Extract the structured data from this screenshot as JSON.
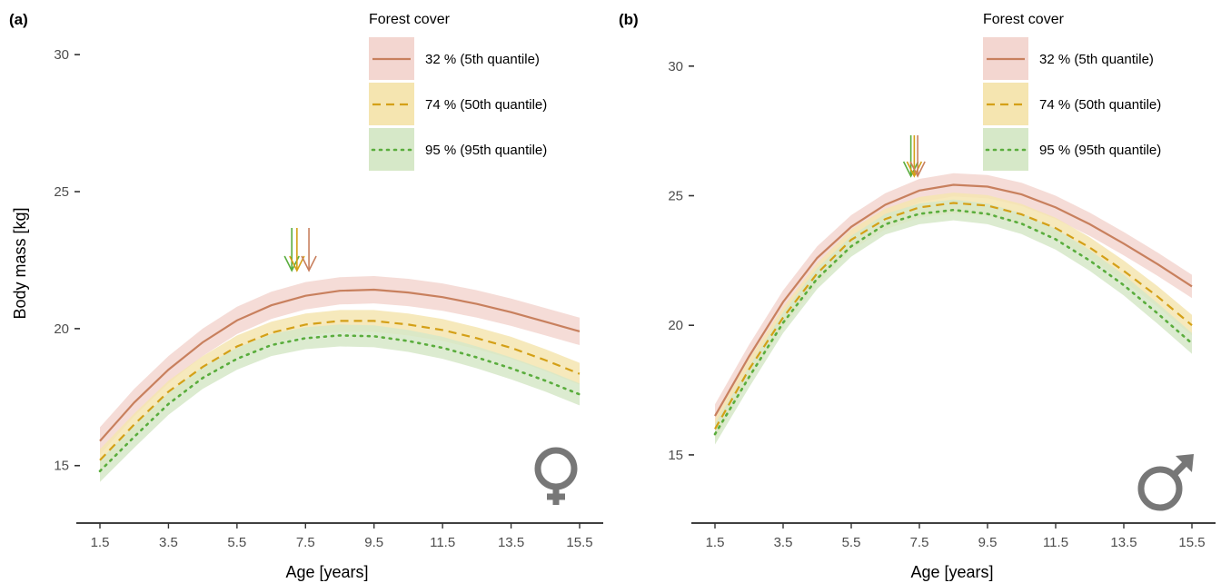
{
  "chart_data": [
    {
      "type": "line",
      "panel_label": "(a)",
      "sex_symbol": "female",
      "xlabel": "Age [years]",
      "ylabel": "Body mass [kg]",
      "xlim": [
        1.5,
        15.5
      ],
      "ylim": [
        13.5,
        31
      ],
      "x_ticks": [
        "1.5",
        "3.5",
        "5.5",
        "7.5",
        "9.5",
        "11.5",
        "13.5",
        "15.5"
      ],
      "y_ticks": [
        "15",
        "20",
        "25",
        "30"
      ],
      "legend_title": "Forest cover",
      "legend_position": "top-right",
      "grid": false,
      "x": [
        1.5,
        2.5,
        3.5,
        4.5,
        5.5,
        6.5,
        7.5,
        8.5,
        9.5,
        10.5,
        11.5,
        12.5,
        13.5,
        14.5,
        15.5
      ],
      "series": [
        {
          "name": "32 % (5th quantile)",
          "color": "#c8805e",
          "band_color": "#f3d6d0",
          "dash": "solid",
          "values": [
            15.9,
            17.3,
            18.5,
            19.5,
            20.3,
            20.85,
            21.2,
            21.38,
            21.42,
            21.32,
            21.15,
            20.9,
            20.6,
            20.25,
            19.9
          ],
          "band_halfwidth": 0.5
        },
        {
          "name": "74 % (50th quantile)",
          "color": "#d4a017",
          "band_color": "#f5e5b0",
          "dash": "dashed",
          "values": [
            15.2,
            16.5,
            17.7,
            18.6,
            19.35,
            19.85,
            20.15,
            20.28,
            20.28,
            20.15,
            19.95,
            19.65,
            19.3,
            18.85,
            18.35
          ],
          "band_halfwidth": 0.4
        },
        {
          "name": "95 % (95th quantile)",
          "color": "#5aad3d",
          "band_color": "#d6e8c8",
          "dash": "dotted",
          "values": [
            14.8,
            16.05,
            17.25,
            18.2,
            18.9,
            19.4,
            19.65,
            19.75,
            19.72,
            19.55,
            19.3,
            18.95,
            18.55,
            18.1,
            17.6
          ],
          "band_halfwidth": 0.4
        }
      ],
      "arrows": [
        {
          "series": "95 % (95th quantile)",
          "x": 7.1
        },
        {
          "series": "74 % (50th quantile)",
          "x": 7.25
        },
        {
          "series": "32 % (5th quantile)",
          "x": 7.6
        }
      ]
    },
    {
      "type": "line",
      "panel_label": "(b)",
      "sex_symbol": "male",
      "xlabel": "Age [years]",
      "ylabel": "",
      "xlim": [
        1.5,
        15.5
      ],
      "ylim": [
        13.0,
        31.5
      ],
      "x_ticks": [
        "1.5",
        "3.5",
        "5.5",
        "7.5",
        "9.5",
        "11.5",
        "13.5",
        "15.5"
      ],
      "y_ticks": [
        "15",
        "20",
        "25",
        "30"
      ],
      "legend_title": "Forest cover",
      "legend_position": "top-right",
      "grid": false,
      "x": [
        1.5,
        2.5,
        3.5,
        4.5,
        5.5,
        6.5,
        7.5,
        8.5,
        9.5,
        10.5,
        11.5,
        12.5,
        13.5,
        14.5,
        15.5
      ],
      "series": [
        {
          "name": "32 % (5th quantile)",
          "color": "#c8805e",
          "band_color": "#f3d6d0",
          "dash": "solid",
          "values": [
            16.5,
            18.8,
            20.9,
            22.6,
            23.8,
            24.65,
            25.2,
            25.42,
            25.35,
            25.05,
            24.55,
            23.9,
            23.15,
            22.35,
            21.5
          ],
          "band_halfwidth": 0.45
        },
        {
          "name": "74 % (50th quantile)",
          "color": "#d4a017",
          "band_color": "#f5e5b0",
          "dash": "dashed",
          "values": [
            16.0,
            18.3,
            20.3,
            22.0,
            23.3,
            24.1,
            24.55,
            24.72,
            24.62,
            24.28,
            23.75,
            23.0,
            22.1,
            21.1,
            20.0
          ],
          "band_halfwidth": 0.4
        },
        {
          "name": "95 % (95th quantile)",
          "color": "#5aad3d",
          "band_color": "#d6e8c8",
          "dash": "dotted",
          "values": [
            15.8,
            18.0,
            20.1,
            21.8,
            23.05,
            23.9,
            24.3,
            24.45,
            24.3,
            23.92,
            23.32,
            22.5,
            21.55,
            20.45,
            19.3
          ],
          "band_halfwidth": 0.4
        }
      ],
      "arrows": [
        {
          "series": "95 % (95th quantile)",
          "x": 7.25
        },
        {
          "series": "74 % (50th quantile)",
          "x": 7.35
        },
        {
          "series": "32 % (5th quantile)",
          "x": 7.45
        }
      ]
    }
  ]
}
